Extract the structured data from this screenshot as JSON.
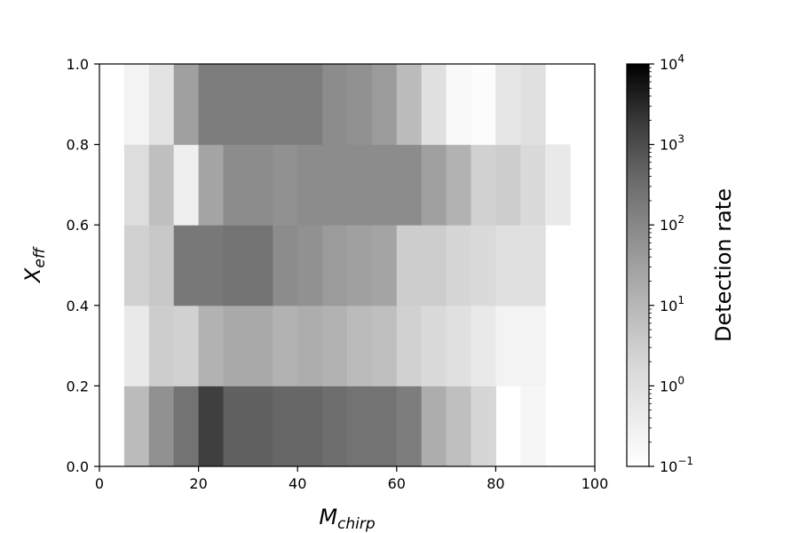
{
  "chart_data": {
    "type": "heatmap",
    "title": "",
    "xlabel": "M",
    "xlabel_sub": "chirp",
    "ylabel": "X",
    "ylabel_sub": "eff",
    "xlim": [
      0,
      100
    ],
    "ylim": [
      0.0,
      1.0
    ],
    "x_ticks": [
      0,
      20,
      40,
      60,
      80,
      100
    ],
    "x_tick_labels": [
      "0",
      "20",
      "40",
      "60",
      "80",
      "100"
    ],
    "y_ticks": [
      0.0,
      0.2,
      0.4,
      0.6,
      0.8,
      1.0
    ],
    "y_tick_labels": [
      "0.0",
      "0.2",
      "0.4",
      "0.6",
      "0.8",
      "1.0"
    ],
    "x_bin_edges": [
      0,
      5,
      10,
      15,
      20,
      25,
      30,
      35,
      40,
      45,
      50,
      55,
      60,
      65,
      70,
      75,
      80,
      85,
      90,
      95,
      100
    ],
    "y_bin_edges": [
      0.0,
      0.2,
      0.4,
      0.6,
      0.8,
      1.0
    ],
    "log10_values": [
      [
        null,
        0.9,
        1.8,
        2.4,
        3.2,
        2.7,
        2.7,
        2.6,
        2.6,
        2.5,
        2.4,
        2.4,
        2.2,
        1.2,
        0.8,
        0.3,
        null,
        -0.7,
        null,
        null
      ],
      [
        null,
        -0.3,
        0.5,
        0.4,
        1.1,
        1.3,
        1.3,
        1.1,
        1.2,
        1.1,
        0.9,
        0.8,
        0.4,
        0.2,
        0.0,
        -0.3,
        -0.6,
        -0.6,
        null,
        null
      ],
      [
        null,
        0.4,
        0.6,
        2.3,
        2.3,
        2.4,
        2.4,
        1.9,
        1.8,
        1.6,
        1.5,
        1.4,
        0.5,
        0.5,
        0.3,
        0.2,
        0.0,
        0.0,
        null,
        null
      ],
      [
        null,
        0.1,
        0.8,
        -0.5,
        1.4,
        1.9,
        1.9,
        1.8,
        1.9,
        1.9,
        1.9,
        1.9,
        1.9,
        1.5,
        1.1,
        0.4,
        0.5,
        0.2,
        -0.3,
        null
      ],
      [
        null,
        -0.6,
        -0.1,
        1.5,
        2.2,
        2.2,
        2.2,
        2.2,
        2.2,
        1.9,
        1.8,
        1.6,
        0.9,
        0.0,
        -0.8,
        -0.9,
        -0.2,
        0.0,
        null,
        null
      ]
    ],
    "colorbar": {
      "label": "Detection rate",
      "scale": "log",
      "range": [
        0.1,
        10000
      ],
      "colormap": "Greys",
      "ticks": [
        {
          "base": "10",
          "exp": "−1",
          "log": -1
        },
        {
          "base": "10",
          "exp": "0",
          "log": 0
        },
        {
          "base": "10",
          "exp": "1",
          "log": 1
        },
        {
          "base": "10",
          "exp": "2",
          "log": 2
        },
        {
          "base": "10",
          "exp": "3",
          "log": 3
        },
        {
          "base": "10",
          "exp": "4",
          "log": 4
        }
      ]
    }
  }
}
